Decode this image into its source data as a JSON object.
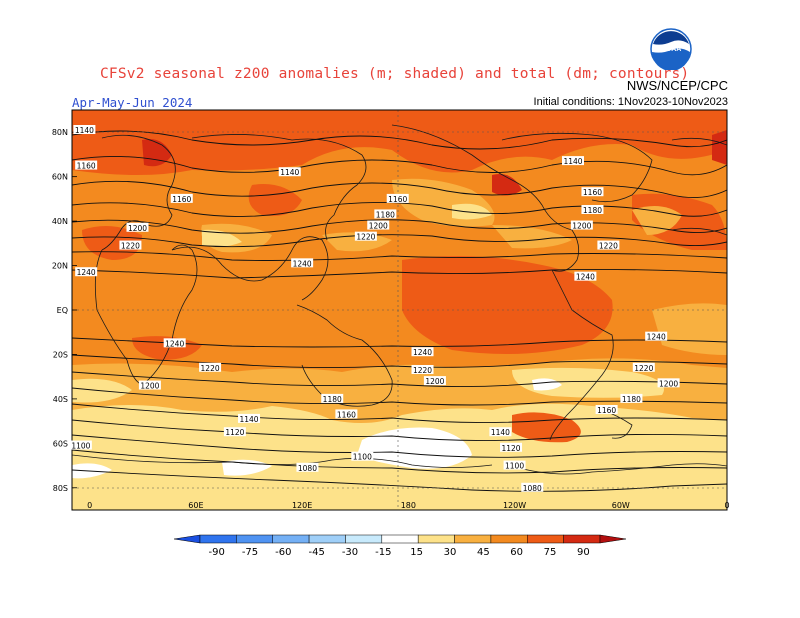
{
  "title": "CFSv2 seasonal z200 anomalies (m; shaded) and total (dm; contours)",
  "agency": "NWS/NCEP/CPC",
  "period": "Apr-May-Jun 2024",
  "initial_conditions": "Initial conditions: 1Nov2023-10Nov2023",
  "logo_text": "NOAA",
  "map": {
    "lon_range": [
      -10,
      360
    ],
    "lat_range": [
      -90,
      90
    ],
    "lat_ticks": [
      "80N",
      "60N",
      "40N",
      "20N",
      "EQ",
      "20S",
      "40S",
      "60S",
      "80S"
    ],
    "lon_ticks": [
      "0",
      "60E",
      "120E",
      "180",
      "120W",
      "60W",
      "0"
    ]
  },
  "colorbar": {
    "labels": [
      "-90",
      "-75",
      "-60",
      "-45",
      "-30",
      "-15",
      "15",
      "30",
      "45",
      "60",
      "75",
      "90"
    ],
    "colors": [
      "#1a4fe0",
      "#2f74ee",
      "#4f93f2",
      "#74b0f5",
      "#9fcff8",
      "#c8eafc",
      "#ffffff",
      "#fde28a",
      "#f8b040",
      "#f38a1f",
      "#ee5b16",
      "#d42a12",
      "#b20f0f"
    ]
  },
  "contour_labels": [
    {
      "v": "1140",
      "lon": -3,
      "lat": 81
    },
    {
      "v": "1160",
      "lon": -2,
      "lat": 65
    },
    {
      "v": "1140",
      "lon": 113,
      "lat": 62
    },
    {
      "v": "1160",
      "lon": 52,
      "lat": 50
    },
    {
      "v": "1200",
      "lon": 27,
      "lat": 37
    },
    {
      "v": "1220",
      "lon": 23,
      "lat": 29
    },
    {
      "v": "1240",
      "lon": -2,
      "lat": 17
    },
    {
      "v": "1160",
      "lon": 174,
      "lat": 50
    },
    {
      "v": "1180",
      "lon": 167,
      "lat": 43
    },
    {
      "v": "1200",
      "lon": 163,
      "lat": 38
    },
    {
      "v": "1220",
      "lon": 156,
      "lat": 33
    },
    {
      "v": "1240",
      "lon": 120,
      "lat": 21
    },
    {
      "v": "1140",
      "lon": 273,
      "lat": 67
    },
    {
      "v": "1160",
      "lon": 284,
      "lat": 53
    },
    {
      "v": "1180",
      "lon": 284,
      "lat": 45
    },
    {
      "v": "1200",
      "lon": 278,
      "lat": 38
    },
    {
      "v": "1220",
      "lon": 293,
      "lat": 29
    },
    {
      "v": "1240",
      "lon": 280,
      "lat": 15
    },
    {
      "v": "1240",
      "lon": 48,
      "lat": -15
    },
    {
      "v": "1220",
      "lon": 68,
      "lat": -26
    },
    {
      "v": "1200",
      "lon": 34,
      "lat": -34
    },
    {
      "v": "1180",
      "lon": 137,
      "lat": -40
    },
    {
      "v": "1160",
      "lon": 145,
      "lat": -47
    },
    {
      "v": "1140",
      "lon": 90,
      "lat": -49
    },
    {
      "v": "1120",
      "lon": 82,
      "lat": -55
    },
    {
      "v": "1100",
      "lon": -5,
      "lat": -61
    },
    {
      "v": "1100",
      "lon": 154,
      "lat": -66
    },
    {
      "v": "1080",
      "lon": 123,
      "lat": -71
    },
    {
      "v": "1240",
      "lon": 188,
      "lat": -19
    },
    {
      "v": "1220",
      "lon": 188,
      "lat": -27
    },
    {
      "v": "1200",
      "lon": 195,
      "lat": -32
    },
    {
      "v": "1140",
      "lon": 232,
      "lat": -55
    },
    {
      "v": "1120",
      "lon": 238,
      "lat": -62
    },
    {
      "v": "1100",
      "lon": 240,
      "lat": -70
    },
    {
      "v": "1080",
      "lon": 250,
      "lat": -80
    },
    {
      "v": "1160",
      "lon": 292,
      "lat": -45
    },
    {
      "v": "1180",
      "lon": 306,
      "lat": -40
    },
    {
      "v": "1200",
      "lon": 327,
      "lat": -33
    },
    {
      "v": "1220",
      "lon": 313,
      "lat": -26
    },
    {
      "v": "1240",
      "lon": 320,
      "lat": -12
    }
  ]
}
